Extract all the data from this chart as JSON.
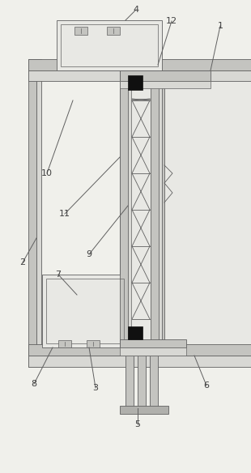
{
  "bg_color": "#f0f0eb",
  "line_color": "#606060",
  "dark_color": "#404040",
  "black": "#101010",
  "gray_light": "#d8d8d4",
  "gray_med": "#c4c4c0",
  "gray_dark": "#b0b0ac",
  "white_ish": "#e8e8e4"
}
